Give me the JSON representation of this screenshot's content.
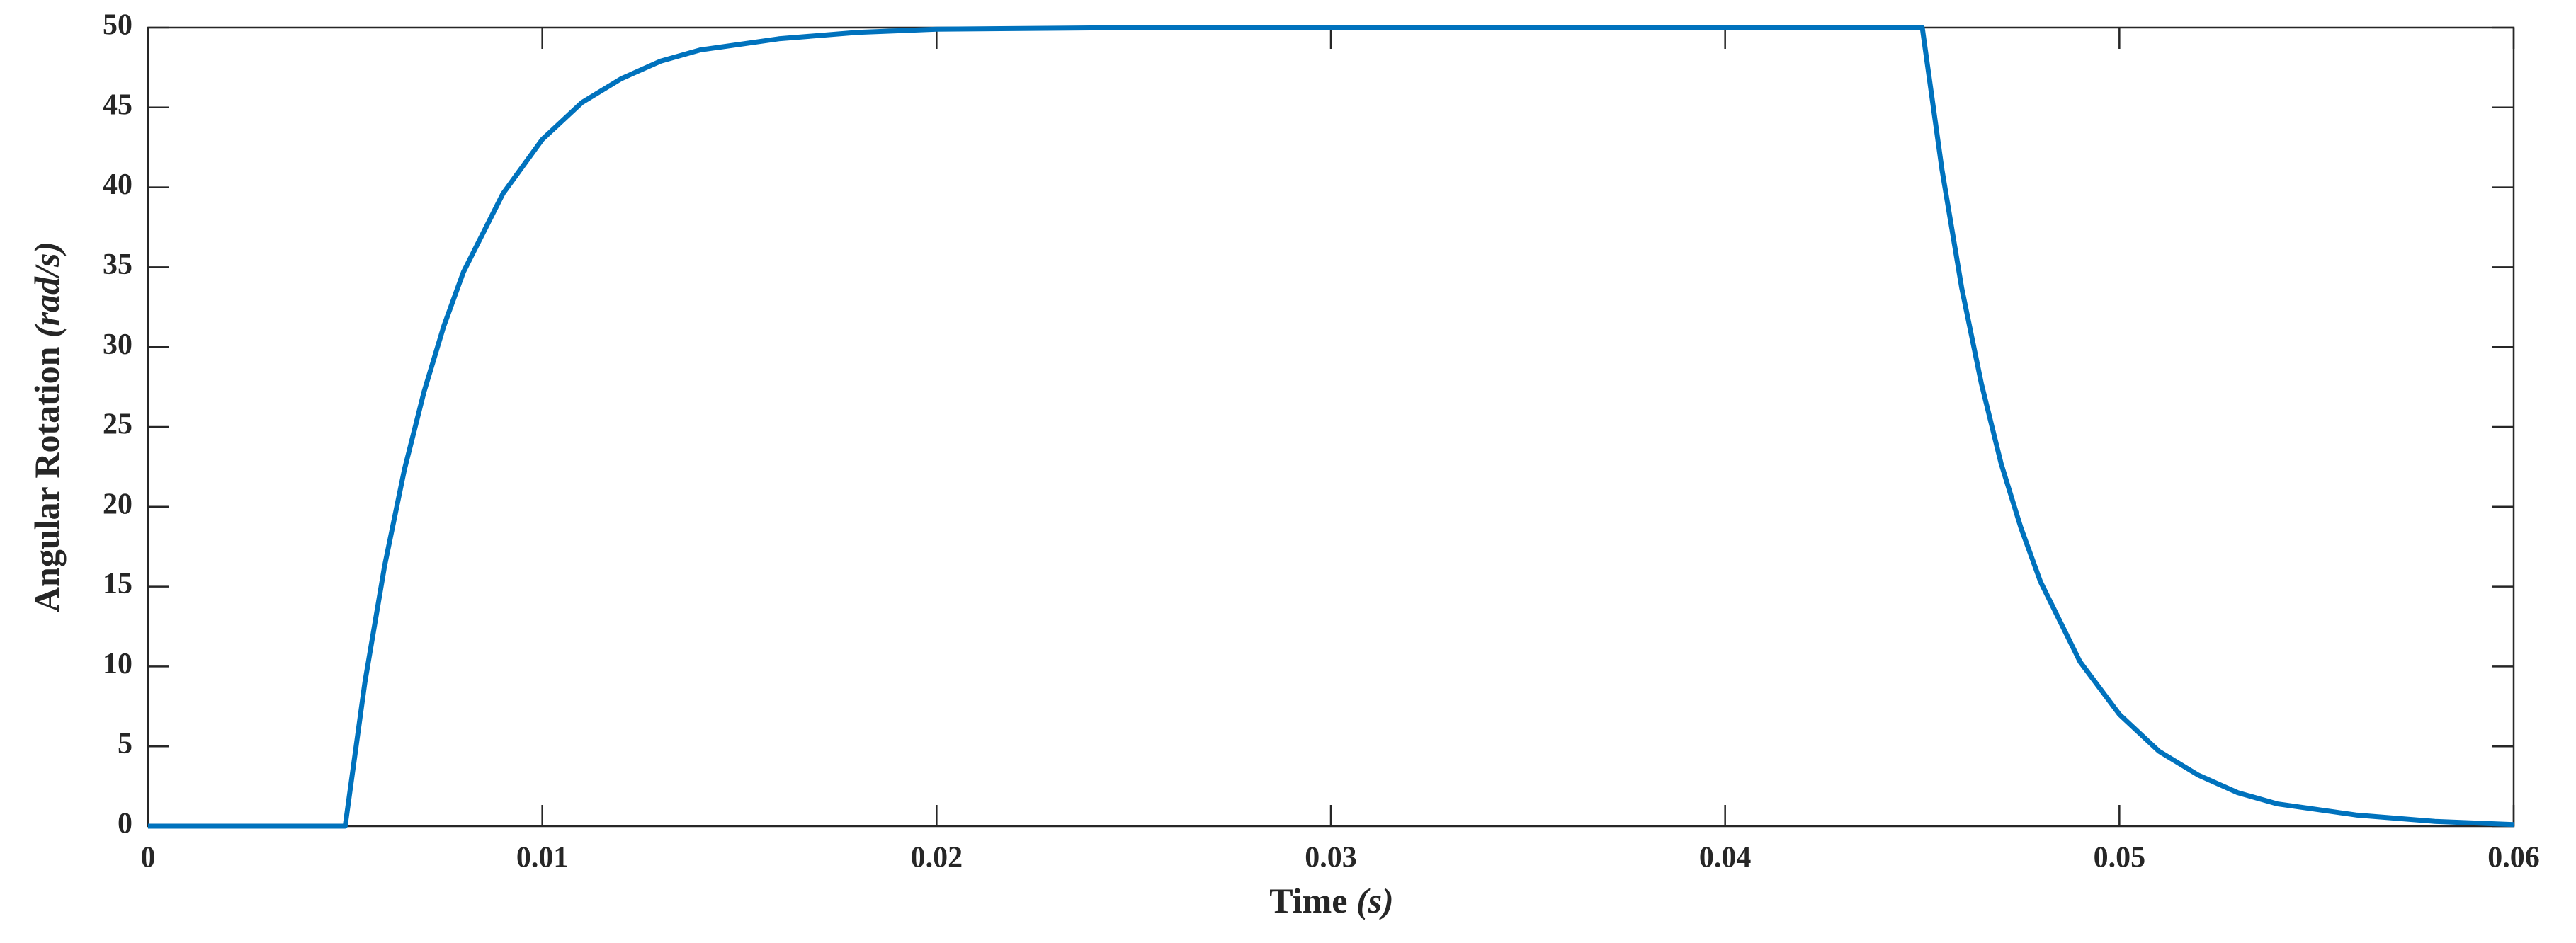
{
  "chart_data": {
    "type": "line",
    "x_label": "Time",
    "x_label_unit": "(s)",
    "y_label": "Angular Rotation",
    "y_label_unit": "(rad/s)",
    "x": [
      0,
      0.005,
      0.0055,
      0.006,
      0.0065,
      0.007,
      0.0075,
      0.008,
      0.009,
      0.01,
      0.011,
      0.012,
      0.013,
      0.014,
      0.016,
      0.018,
      0.02,
      0.025,
      0.045,
      0.0455,
      0.046,
      0.0465,
      0.047,
      0.0475,
      0.048,
      0.049,
      0.05,
      0.051,
      0.052,
      0.053,
      0.054,
      0.056,
      0.058,
      0.06
    ],
    "series": [
      {
        "name": "Angular Rotation",
        "color": "#0072bd",
        "values": [
          0,
          0,
          9.0,
          16.3,
          22.3,
          27.2,
          31.3,
          34.7,
          39.6,
          43.0,
          45.3,
          46.8,
          47.9,
          48.6,
          49.3,
          49.7,
          49.9,
          50,
          50,
          41.1,
          33.7,
          27.7,
          22.7,
          18.7,
          15.3,
          10.3,
          7.0,
          4.7,
          3.2,
          2.1,
          1.4,
          0.7,
          0.3,
          0.1
        ]
      }
    ],
    "xlim": [
      0,
      0.06
    ],
    "xticks": [
      0,
      0.01,
      0.02,
      0.03,
      0.04,
      0.05,
      0.06
    ],
    "ylim": [
      0,
      50
    ],
    "yticks": [
      0,
      5,
      10,
      15,
      20,
      25,
      30,
      35,
      40,
      45,
      50
    ],
    "grid": false
  }
}
